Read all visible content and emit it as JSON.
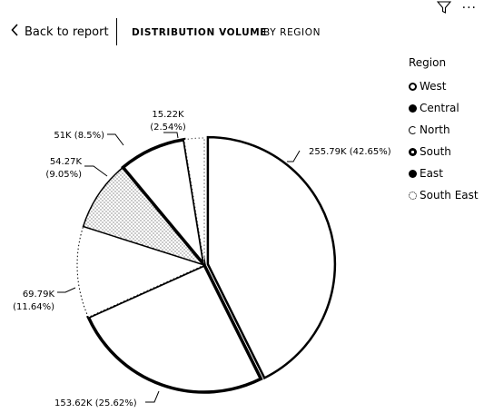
{
  "toolbar": {
    "filter_icon": "filter-icon",
    "more_icon": "more-options-icon",
    "more_label": "···"
  },
  "nav": {
    "back_label": "Back to report",
    "tabs": [
      {
        "label": "DISTRIBUTION VOLUME",
        "active": true
      },
      {
        "label": "BY REGION",
        "active": false
      }
    ]
  },
  "legend": {
    "title": "Region",
    "items": [
      {
        "label": "West",
        "style": "ring"
      },
      {
        "label": "Central",
        "style": "solid"
      },
      {
        "label": "North",
        "style": "open"
      },
      {
        "label": "South",
        "style": "solid-ring"
      },
      {
        "label": "East",
        "style": "solid"
      },
      {
        "label": "South East",
        "style": "dotted"
      }
    ]
  },
  "chart_data": {
    "type": "pie",
    "slices": [
      {
        "name": "West",
        "value": 255.79,
        "label": "255.79K (42.65%)"
      },
      {
        "name": "Central",
        "value": 153.62,
        "label": "153.62K (25.62%)"
      },
      {
        "name": "North",
        "value": 69.79,
        "label_lines": [
          "69.79K",
          "(11.64%)"
        ]
      },
      {
        "name": "South",
        "value": 54.27,
        "label_lines": [
          "54.27K",
          "(9.05%)"
        ]
      },
      {
        "name": "East",
        "value": 51,
        "label": "51K (8.5%)"
      },
      {
        "name": "South East",
        "value": 15.22,
        "label_lines": [
          "15.22K",
          "(2.54%)"
        ]
      }
    ],
    "legend_position": "right"
  }
}
